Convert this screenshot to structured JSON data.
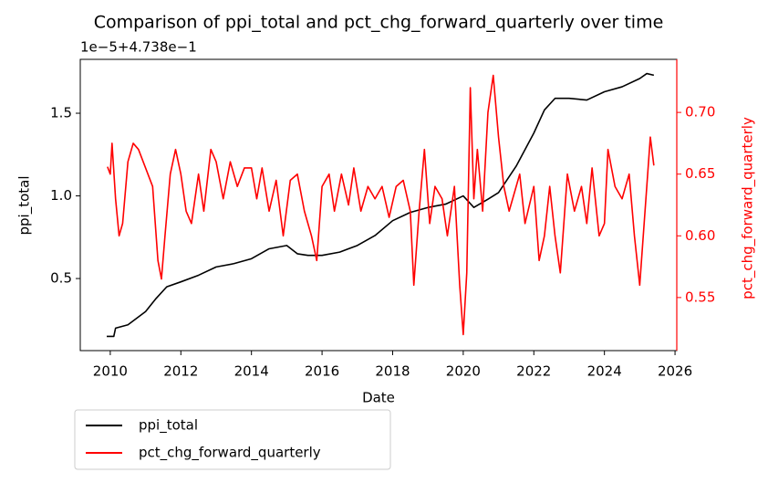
{
  "chart_data": {
    "type": "line",
    "title": "Comparison of ppi_total and pct_chg_forward_quarterly over time",
    "x_label": "Date",
    "y_label": "ppi_total",
    "y2_label": "pct_chg_forward_quarterly",
    "y_offset_label": "1e−5+4.738e−1",
    "xlim": [
      2009.15,
      2026.05
    ],
    "xticks": [
      2010,
      2012,
      2014,
      2016,
      2018,
      2020,
      2022,
      2024,
      2026
    ],
    "ylim": [
      0.064,
      1.826
    ],
    "yticks": [
      0.5,
      {
        "value": 1,
        "label": "1.0"
      },
      1.5
    ],
    "y2lim": [
      0.507,
      0.743
    ],
    "y2ticks": [
      0.55,
      {
        "value": 0.6,
        "label": "0.60"
      },
      0.65,
      {
        "value": 0.7,
        "label": "0.70"
      }
    ],
    "y2_color": "#ff0000",
    "legend": "below-left",
    "series": [
      {
        "name": "ppi_total",
        "color": "#000000",
        "x": [
          2009.9,
          2010.1,
          2010.15,
          2010.5,
          2011,
          2011.3,
          2011.6,
          2012,
          2012.5,
          2013,
          2013.5,
          2014,
          2014.5,
          2015,
          2015.3,
          2015.6,
          2016,
          2016.5,
          2017,
          2017.5,
          2018,
          2018.5,
          2019,
          2019.5,
          2020,
          2020.3,
          2020.7,
          2021,
          2021.5,
          2022,
          2022.3,
          2022.6,
          2023,
          2023.5,
          2024,
          2024.5,
          2025,
          2025.2,
          2025.4
        ],
        "values": [
          0.15,
          0.15,
          0.2,
          0.22,
          0.3,
          0.38,
          0.45,
          0.48,
          0.52,
          0.57,
          0.59,
          0.62,
          0.68,
          0.7,
          0.65,
          0.64,
          0.64,
          0.66,
          0.7,
          0.76,
          0.85,
          0.9,
          0.93,
          0.95,
          1.0,
          0.93,
          0.98,
          1.02,
          1.18,
          1.38,
          1.52,
          1.59,
          1.59,
          1.58,
          1.63,
          1.66,
          1.71,
          1.74,
          1.73
        ]
      },
      {
        "name": "pct_chg_forward_quarterly",
        "color": "#ff0000",
        "axis": "y2",
        "x": [
          2009.92,
          2010.0,
          2010.05,
          2010.15,
          2010.25,
          2010.35,
          2010.5,
          2010.65,
          2010.8,
          2011.0,
          2011.2,
          2011.35,
          2011.45,
          2011.55,
          2011.7,
          2011.85,
          2012.0,
          2012.15,
          2012.3,
          2012.5,
          2012.65,
          2012.85,
          2013.0,
          2013.2,
          2013.4,
          2013.6,
          2013.8,
          2014.0,
          2014.15,
          2014.3,
          2014.5,
          2014.7,
          2014.9,
          2015.1,
          2015.3,
          2015.5,
          2015.7,
          2015.85,
          2016.0,
          2016.2,
          2016.35,
          2016.55,
          2016.75,
          2016.9,
          2017.1,
          2017.3,
          2017.5,
          2017.7,
          2017.9,
          2018.1,
          2018.3,
          2018.5,
          2018.6,
          2018.75,
          2018.9,
          2019.05,
          2019.2,
          2019.4,
          2019.55,
          2019.75,
          2019.9,
          2020.0,
          2020.1,
          2020.2,
          2020.3,
          2020.4,
          2020.55,
          2020.7,
          2020.85,
          2021.0,
          2021.15,
          2021.3,
          2021.5,
          2021.6,
          2021.75,
          2022.0,
          2022.15,
          2022.3,
          2022.45,
          2022.6,
          2022.75,
          2022.95,
          2023.15,
          2023.35,
          2023.5,
          2023.65,
          2023.85,
          2024.0,
          2024.1,
          2024.3,
          2024.5,
          2024.7,
          2024.85,
          2025.0,
          2025.15,
          2025.3,
          2025.4
        ],
        "values": [
          0.656,
          0.65,
          0.675,
          0.63,
          0.6,
          0.61,
          0.66,
          0.675,
          0.67,
          0.655,
          0.64,
          0.58,
          0.565,
          0.6,
          0.65,
          0.67,
          0.65,
          0.62,
          0.61,
          0.65,
          0.62,
          0.67,
          0.66,
          0.63,
          0.66,
          0.64,
          0.655,
          0.655,
          0.63,
          0.655,
          0.62,
          0.645,
          0.6,
          0.645,
          0.65,
          0.62,
          0.6,
          0.58,
          0.64,
          0.65,
          0.62,
          0.65,
          0.625,
          0.655,
          0.62,
          0.64,
          0.63,
          0.64,
          0.615,
          0.64,
          0.645,
          0.62,
          0.56,
          0.62,
          0.67,
          0.61,
          0.64,
          0.63,
          0.6,
          0.64,
          0.56,
          0.52,
          0.57,
          0.72,
          0.63,
          0.67,
          0.62,
          0.7,
          0.73,
          0.68,
          0.64,
          0.62,
          0.64,
          0.65,
          0.61,
          0.64,
          0.58,
          0.6,
          0.64,
          0.6,
          0.57,
          0.65,
          0.62,
          0.64,
          0.61,
          0.655,
          0.6,
          0.61,
          0.67,
          0.64,
          0.63,
          0.65,
          0.6,
          0.56,
          0.62,
          0.68,
          0.657
        ]
      }
    ]
  }
}
